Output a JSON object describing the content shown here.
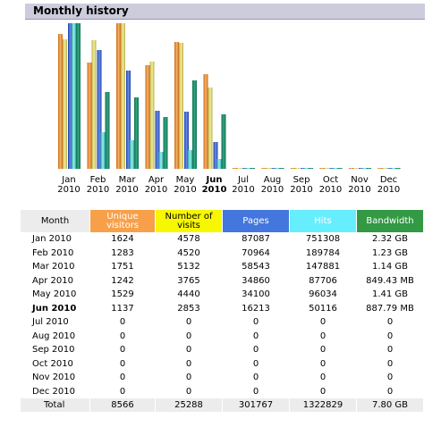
{
  "title": "Monthly history",
  "current_month": "Jun 2010",
  "colors": {
    "unique_visitors": "#f7a049",
    "number_of_visits": "#f7f700",
    "pages": "#4477dd",
    "hits": "#66eeff",
    "bandwidth": "#339944",
    "header_bg": "#ccccdd"
  },
  "chart_data": {
    "type": "bar",
    "categories": [
      [
        "Jan",
        "2010"
      ],
      [
        "Feb",
        "2010"
      ],
      [
        "Mar",
        "2010"
      ],
      [
        "Apr",
        "2010"
      ],
      [
        "May",
        "2010"
      ],
      [
        "Jun",
        "2010"
      ],
      [
        "Jul",
        "2010"
      ],
      [
        "Aug",
        "2010"
      ],
      [
        "Sep",
        "2010"
      ],
      [
        "Oct",
        "2010"
      ],
      [
        "Nov",
        "2010"
      ],
      [
        "Dec",
        "2010"
      ]
    ],
    "series": [
      {
        "key": "unique_visitors",
        "values": [
          1624,
          1283,
          1751,
          1242,
          1529,
          1137,
          0,
          0,
          0,
          0,
          0,
          0
        ]
      },
      {
        "key": "number_of_visits",
        "values": [
          4578,
          4520,
          5132,
          3765,
          4440,
          2853,
          0,
          0,
          0,
          0,
          0,
          0
        ]
      },
      {
        "key": "pages",
        "values": [
          87087,
          70964,
          58543,
          34860,
          34100,
          16213,
          0,
          0,
          0,
          0,
          0,
          0
        ]
      },
      {
        "key": "hits",
        "values": [
          751308,
          189784,
          147881,
          87706,
          96034,
          50116,
          0,
          0,
          0,
          0,
          0,
          0
        ]
      },
      {
        "key": "bandwidth",
        "values": [
          2.32,
          1.23,
          1.14,
          0.8295,
          1.41,
          0.867,
          0,
          0,
          0,
          0,
          0,
          0
        ]
      }
    ]
  },
  "table": {
    "headers": [
      "Month",
      "Unique visitors",
      "Number of visits",
      "Pages",
      "Hits",
      "Bandwidth"
    ],
    "rows": [
      [
        "Jan 2010",
        "1624",
        "4578",
        "87087",
        "751308",
        "2.32 GB"
      ],
      [
        "Feb 2010",
        "1283",
        "4520",
        "70964",
        "189784",
        "1.23 GB"
      ],
      [
        "Mar 2010",
        "1751",
        "5132",
        "58543",
        "147881",
        "1.14 GB"
      ],
      [
        "Apr 2010",
        "1242",
        "3765",
        "34860",
        "87706",
        "849.43 MB"
      ],
      [
        "May 2010",
        "1529",
        "4440",
        "34100",
        "96034",
        "1.41 GB"
      ],
      [
        "Jun 2010",
        "1137",
        "2853",
        "16213",
        "50116",
        "887.79 MB"
      ],
      [
        "Jul 2010",
        "0",
        "0",
        "0",
        "0",
        "0"
      ],
      [
        "Aug 2010",
        "0",
        "0",
        "0",
        "0",
        "0"
      ],
      [
        "Sep 2010",
        "0",
        "0",
        "0",
        "0",
        "0"
      ],
      [
        "Oct 2010",
        "0",
        "0",
        "0",
        "0",
        "0"
      ],
      [
        "Nov 2010",
        "0",
        "0",
        "0",
        "0",
        "0"
      ],
      [
        "Dec 2010",
        "0",
        "0",
        "0",
        "0",
        "0"
      ]
    ],
    "total": [
      "Total",
      "8566",
      "25288",
      "301767",
      "1322829",
      "7.80 GB"
    ]
  }
}
